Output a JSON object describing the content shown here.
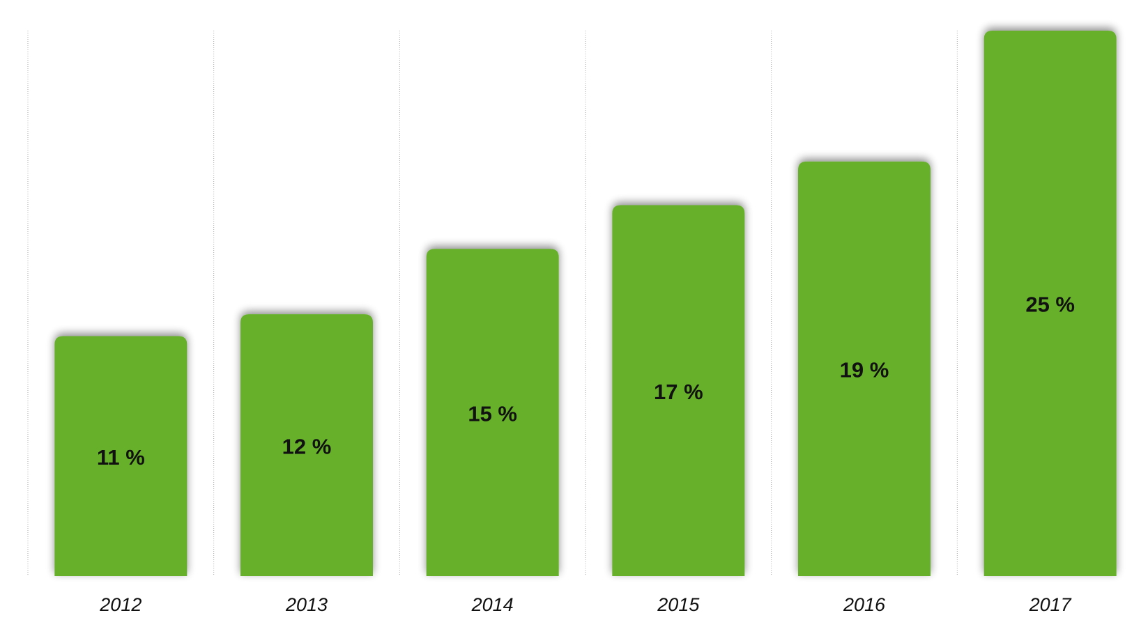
{
  "chart_data": {
    "type": "bar",
    "categories": [
      "2012",
      "2013",
      "2014",
      "2015",
      "2016",
      "2017"
    ],
    "values": [
      11,
      12,
      15,
      17,
      19,
      25
    ],
    "value_labels": [
      "11 %",
      "12 %",
      "15 %",
      "17 %",
      "19 %",
      "25 %"
    ],
    "color": "#66b02c",
    "ylim": [
      0,
      25
    ]
  }
}
